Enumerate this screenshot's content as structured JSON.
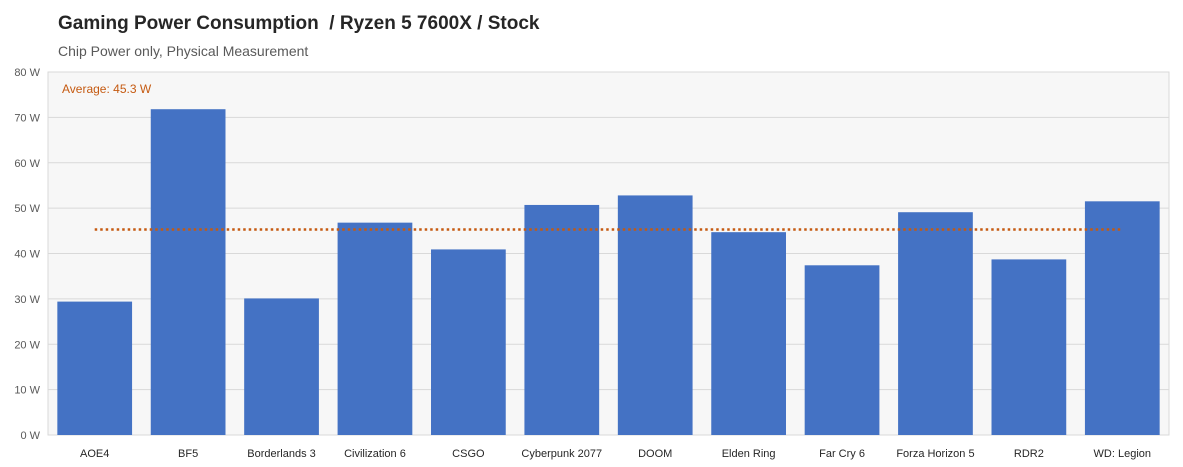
{
  "chart_data": {
    "type": "bar",
    "title": "Gaming Power Consumption  / Ryzen 5 7600X / Stock",
    "subtitle": "Chip Power only, Physical Measurement",
    "categories": [
      "AOE4",
      "BF5",
      "Borderlands 3",
      "Civilization 6",
      "CSGO",
      "Cyberpunk 2077",
      "DOOM",
      "Elden Ring",
      "Far Cry 6",
      "Forza Horizon 5",
      "RDR2",
      "WD: Legion"
    ],
    "values": [
      29.4,
      71.8,
      30.1,
      46.8,
      40.9,
      50.7,
      52.8,
      44.7,
      37.4,
      49.1,
      38.7,
      51.5
    ],
    "ylim": [
      0,
      80
    ],
    "yticks": [
      "0 W",
      "10 W",
      "20 W",
      "30 W",
      "40 W",
      "50 W",
      "60 W",
      "70 W",
      "80 W"
    ],
    "average": {
      "value": 45.3,
      "label": "Average: 45.3 W"
    },
    "grid": true,
    "colors": {
      "bar": "#4472c4",
      "average": "#c55a11",
      "grid": "#d9d9d9",
      "plot_bg": "#f7f7f7"
    }
  }
}
